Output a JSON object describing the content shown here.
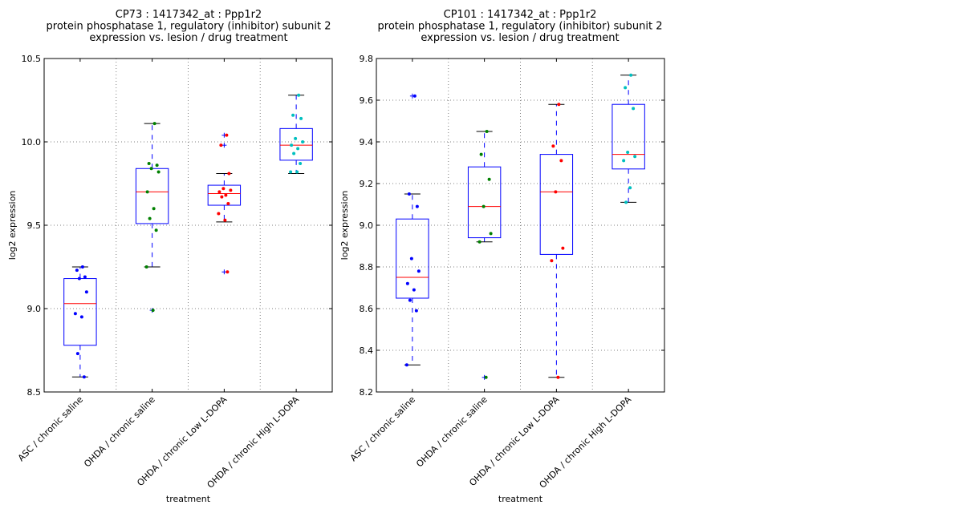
{
  "chart_data": [
    {
      "type": "box",
      "title_lines": [
        "CP73 : 1417342_at : Ppp1r2",
        "protein phosphatase 1, regulatory (inhibitor) subunit 2",
        "expression vs. lesion / drug treatment"
      ],
      "xlabel": "treatment",
      "ylabel": "log2 expression",
      "ylim": [
        8.5,
        10.5
      ],
      "yticks": [
        8.5,
        9.0,
        9.5,
        10.0,
        10.5
      ],
      "ytick_labels": [
        "8.5",
        "9.0",
        "9.5",
        "10.0",
        "10.5"
      ],
      "grid": true,
      "categories": [
        "ASC / chronic saline",
        "OHDA / chronic saline",
        "OHDA / chronic Low L-DOPA",
        "OHDA / chronic High L-DOPA"
      ],
      "point_colors": [
        "#0000ff",
        "#008000",
        "#ff0000",
        "#00bfbf"
      ],
      "boxes": [
        {
          "whislo": 8.59,
          "q1": 8.78,
          "med": 9.03,
          "q3": 9.18,
          "whishi": 9.25,
          "fliers": []
        },
        {
          "whislo": 9.25,
          "q1": 9.51,
          "med": 9.7,
          "q3": 9.84,
          "whishi": 10.11,
          "fliers": [
            8.99
          ]
        },
        {
          "whislo": 9.52,
          "q1": 9.62,
          "med": 9.69,
          "q3": 9.74,
          "whishi": 9.81,
          "fliers": [
            10.04,
            9.98,
            9.22
          ]
        },
        {
          "whislo": 9.81,
          "q1": 9.89,
          "med": 9.98,
          "q3": 10.08,
          "whishi": 10.28,
          "fliers": []
        }
      ],
      "points": [
        [
          9.25,
          9.23,
          9.19,
          9.18,
          9.1,
          8.97,
          8.95,
          8.73,
          8.59
        ],
        [
          10.11,
          9.87,
          9.86,
          9.84,
          9.82,
          9.7,
          9.6,
          9.54,
          9.47,
          9.25,
          8.99
        ],
        [
          10.04,
          9.98,
          9.81,
          9.72,
          9.71,
          9.7,
          9.68,
          9.67,
          9.63,
          9.57,
          9.53,
          9.22
        ],
        [
          10.28,
          10.16,
          10.14,
          10.02,
          10.0,
          9.98,
          9.96,
          9.93,
          9.87,
          9.82,
          9.82
        ]
      ]
    },
    {
      "type": "box",
      "title_lines": [
        "CP101 : 1417342_at : Ppp1r2",
        "protein phosphatase 1, regulatory (inhibitor) subunit 2",
        "expression vs. lesion / drug treatment"
      ],
      "xlabel": "treatment",
      "ylabel": "log2 expression",
      "ylim": [
        8.2,
        9.8
      ],
      "yticks": [
        8.2,
        8.4,
        8.6,
        8.8,
        9.0,
        9.2,
        9.4,
        9.6,
        9.8
      ],
      "ytick_labels": [
        "8.2",
        "8.4",
        "8.6",
        "8.8",
        "9.0",
        "9.2",
        "9.4",
        "9.6",
        "9.8"
      ],
      "grid": true,
      "categories": [
        "ASC / chronic saline",
        "OHDA / chronic saline",
        "OHDA / chronic Low L-DOPA",
        "OHDA / chronic High L-DOPA"
      ],
      "point_colors": [
        "#0000ff",
        "#008000",
        "#ff0000",
        "#00bfbf"
      ],
      "boxes": [
        {
          "whislo": 8.33,
          "q1": 8.65,
          "med": 8.75,
          "q3": 9.03,
          "whishi": 9.15,
          "fliers": [
            9.62
          ]
        },
        {
          "whislo": 8.92,
          "q1": 8.94,
          "med": 9.09,
          "q3": 9.28,
          "whishi": 9.45,
          "fliers": [
            8.27
          ]
        },
        {
          "whislo": 8.27,
          "q1": 8.86,
          "med": 9.16,
          "q3": 9.34,
          "whishi": 9.58,
          "fliers": []
        },
        {
          "whislo": 9.11,
          "q1": 9.27,
          "med": 9.34,
          "q3": 9.58,
          "whishi": 9.72,
          "fliers": []
        }
      ],
      "points": [
        [
          9.62,
          9.15,
          9.09,
          8.84,
          8.78,
          8.72,
          8.69,
          8.64,
          8.59,
          8.33
        ],
        [
          9.45,
          9.34,
          9.22,
          9.09,
          8.96,
          8.92,
          8.27
        ],
        [
          9.58,
          9.38,
          9.31,
          9.16,
          8.89,
          8.83,
          8.27
        ],
        [
          9.72,
          9.66,
          9.56,
          9.35,
          9.33,
          9.31,
          9.18,
          9.11
        ]
      ]
    }
  ]
}
